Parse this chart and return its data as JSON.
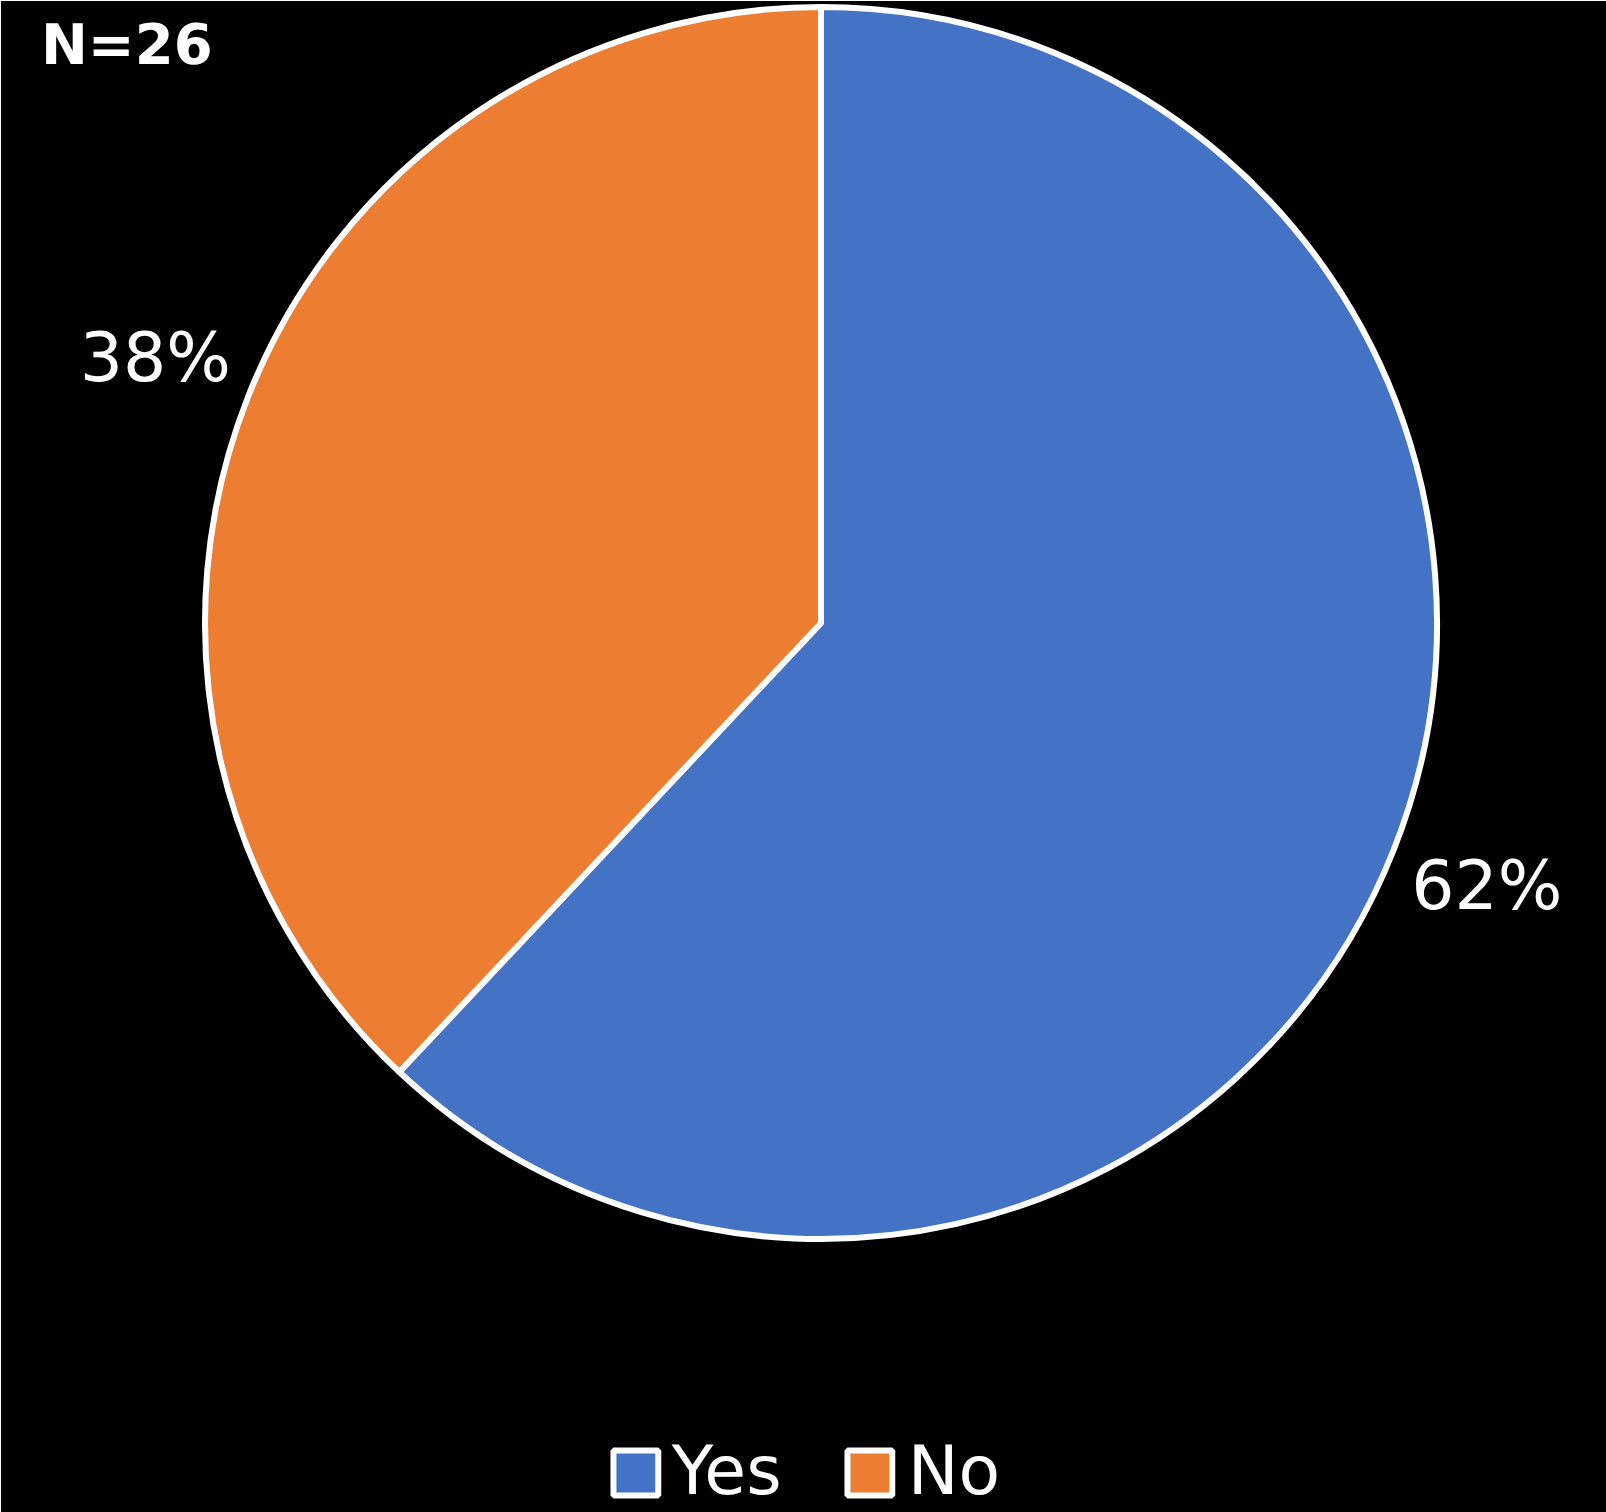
{
  "chart_data": {
    "type": "pie",
    "title": "N=26",
    "categories": [
      "Yes",
      "No"
    ],
    "values": [
      62,
      38
    ],
    "colors": [
      "#4472c4",
      "#ed7d31"
    ],
    "value_labels": [
      "62%",
      "38%"
    ],
    "legend": "bottom"
  }
}
